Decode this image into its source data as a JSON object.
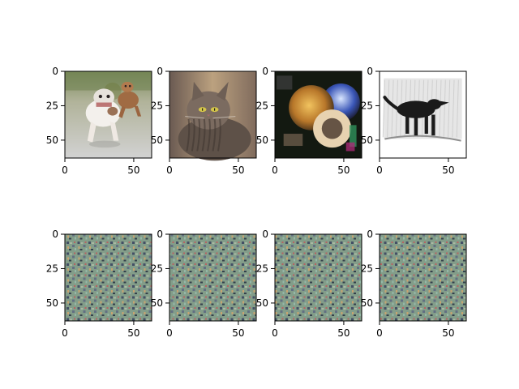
{
  "chart_data": {
    "type": "image_grid",
    "rows": 2,
    "cols": 4,
    "xlim": [
      0,
      63
    ],
    "ylim": [
      63,
      0
    ],
    "xticks": [
      0,
      50
    ],
    "yticks": [
      0,
      25,
      50
    ],
    "xtick_labels": [
      "0",
      "50"
    ],
    "ytick_labels": [
      "0",
      "25",
      "50"
    ],
    "panels": [
      {
        "row": 0,
        "col": 0,
        "content": "two dogs running on grass"
      },
      {
        "row": 0,
        "col": 1,
        "content": "tabby cat"
      },
      {
        "row": 0,
        "col": 2,
        "content": "colorful shells / decorative objects"
      },
      {
        "row": 0,
        "col": 3,
        "content": "engraving of a black dog",
        "caption": ""
      },
      {
        "row": 1,
        "col": 0,
        "content": "repeating noise pattern"
      },
      {
        "row": 1,
        "col": 1,
        "content": "repeating noise pattern"
      },
      {
        "row": 1,
        "col": 2,
        "content": "repeating noise pattern"
      },
      {
        "row": 1,
        "col": 3,
        "content": "repeating noise pattern"
      }
    ]
  }
}
